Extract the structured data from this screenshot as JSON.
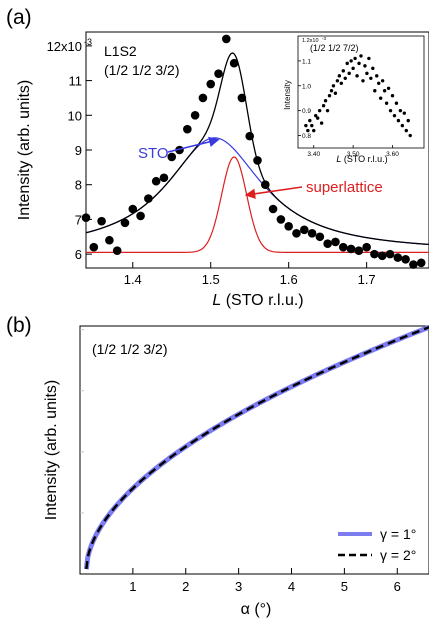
{
  "chart_data": [
    {
      "type": "scatter",
      "panel_label": "(a)",
      "sample_label": "L1S2",
      "reflection_label": "(1/2 1/2 3/2)",
      "xlabel_italic": "L",
      "xlabel_rest": " (STO r.l.u.)",
      "ylabel": "Intensity (arb. units)",
      "xlim": [
        1.34,
        1.78
      ],
      "ylim": [
        5.6,
        12.4
      ],
      "x_ticks": [
        1.4,
        1.5,
        1.6,
        1.7
      ],
      "x_tick_labels": [
        "1.4",
        "1.5",
        "1.6",
        "1.7"
      ],
      "y_ticks": [
        6,
        7,
        8,
        9,
        10,
        11,
        12
      ],
      "y_tick_labels": [
        "6",
        "7",
        "8",
        "9",
        "10",
        "11",
        "12x10"
      ],
      "y_exponent": "-3",
      "annotations": [
        {
          "text": "STO",
          "color": "#3a3adf",
          "target": [
            1.51,
            9.3
          ]
        },
        {
          "text": "superlattice",
          "color": "#dd1f1f",
          "target": [
            1.545,
            7.7
          ]
        }
      ],
      "series": [
        {
          "role": "data",
          "style": "points",
          "color": "#000000",
          "x": [
            1.34,
            1.35,
            1.36,
            1.37,
            1.38,
            1.39,
            1.4,
            1.41,
            1.42,
            1.43,
            1.44,
            1.45,
            1.46,
            1.47,
            1.48,
            1.49,
            1.5,
            1.51,
            1.52,
            1.53,
            1.54,
            1.55,
            1.56,
            1.57,
            1.58,
            1.59,
            1.6,
            1.61,
            1.62,
            1.63,
            1.64,
            1.65,
            1.66,
            1.67,
            1.68,
            1.69,
            1.7,
            1.71,
            1.72,
            1.73,
            1.74,
            1.75,
            1.76,
            1.77
          ],
          "y": [
            7.05,
            6.2,
            6.95,
            6.4,
            6.1,
            6.9,
            7.3,
            7.1,
            7.6,
            8.1,
            8.2,
            8.8,
            9.0,
            9.6,
            10.0,
            10.5,
            10.9,
            11.2,
            12.2,
            11.5,
            10.5,
            9.4,
            8.7,
            8.0,
            7.3,
            7.0,
            6.8,
            6.6,
            6.7,
            6.6,
            6.5,
            6.3,
            6.35,
            6.2,
            6.15,
            6.1,
            6.2,
            6.0,
            5.95,
            6.0,
            5.9,
            5.85,
            5.7,
            5.75
          ]
        },
        {
          "role": "total-fit",
          "style": "line",
          "color": "#000000",
          "model": "sto+superlattice"
        },
        {
          "role": "sto",
          "style": "line",
          "color": "#3a3adf",
          "model": "lorentzian",
          "center": 1.505,
          "amplitude": 3.3,
          "hwhm": 0.075,
          "baseline": 6.05
        },
        {
          "role": "superlattice",
          "style": "line",
          "color": "#dd1f1f",
          "model": "gaussian",
          "center": 1.53,
          "amplitude": 2.75,
          "sigma": 0.016,
          "baseline": 6.05
        }
      ],
      "inset": {
        "reflection_label": "(1/2 1/2 7/2)",
        "ylabel": "Intensity",
        "xlabel_italic": "L",
        "xlabel_rest": " (STO r.l.u.)",
        "xlim": [
          3.36,
          3.68
        ],
        "ylim": [
          0.75,
          1.2
        ],
        "x_ticks": [
          3.4,
          3.5,
          3.6
        ],
        "x_tick_labels": [
          "3.40",
          "3.50",
          "3.60"
        ],
        "y_ticks": [
          0.8,
          0.9,
          1.0,
          1.1
        ],
        "y_tick_labels": [
          "0.8",
          "0.9",
          "1.0",
          "1.1"
        ],
        "y_top_label": "1.2x10",
        "y_exponent": "-3",
        "x": [
          3.38,
          3.385,
          3.39,
          3.395,
          3.4,
          3.405,
          3.41,
          3.415,
          3.42,
          3.425,
          3.43,
          3.435,
          3.44,
          3.445,
          3.45,
          3.455,
          3.46,
          3.465,
          3.47,
          3.475,
          3.48,
          3.485,
          3.49,
          3.495,
          3.5,
          3.505,
          3.51,
          3.515,
          3.52,
          3.525,
          3.53,
          3.535,
          3.54,
          3.545,
          3.55,
          3.555,
          3.56,
          3.565,
          3.57,
          3.575,
          3.58,
          3.585,
          3.59,
          3.595,
          3.6,
          3.605,
          3.61,
          3.615,
          3.62,
          3.625,
          3.63,
          3.635,
          3.64,
          3.645
        ],
        "y": [
          0.84,
          0.82,
          0.86,
          0.84,
          0.82,
          0.88,
          0.87,
          0.9,
          0.85,
          0.92,
          0.94,
          0.9,
          0.96,
          0.98,
          1.0,
          0.97,
          1.02,
          1.04,
          1.01,
          1.06,
          1.03,
          1.09,
          1.05,
          1.1,
          1.07,
          1.11,
          1.04,
          1.09,
          1.12,
          1.02,
          1.08,
          1.05,
          1.11,
          1.03,
          1.07,
          0.98,
          1.04,
          1.01,
          0.95,
          1.02,
          0.98,
          0.93,
          0.99,
          0.9,
          0.96,
          0.88,
          0.93,
          0.86,
          0.9,
          0.84,
          0.89,
          0.82,
          0.86,
          0.8
        ]
      }
    },
    {
      "type": "line",
      "panel_label": "(b)",
      "reflection_label": "(1/2 1/2 3/2)",
      "xlabel": "α (°)",
      "ylabel": "Intensity (arb. units)",
      "xlim": [
        0,
        6.6
      ],
      "ylim": [
        0,
        1.0
      ],
      "x_ticks": [
        1,
        2,
        3,
        4,
        5,
        6
      ],
      "x_tick_labels": [
        "1",
        "2",
        "3",
        "4",
        "5",
        "6"
      ],
      "legend": "bottom-right",
      "curve_model": "power",
      "curve_exponent": 0.55,
      "series": [
        {
          "name": "γ = 1°",
          "color": "#7c7cf0",
          "style": "solid"
        },
        {
          "name": "γ = 2°",
          "color": "#000000",
          "style": "dashed"
        }
      ]
    }
  ]
}
